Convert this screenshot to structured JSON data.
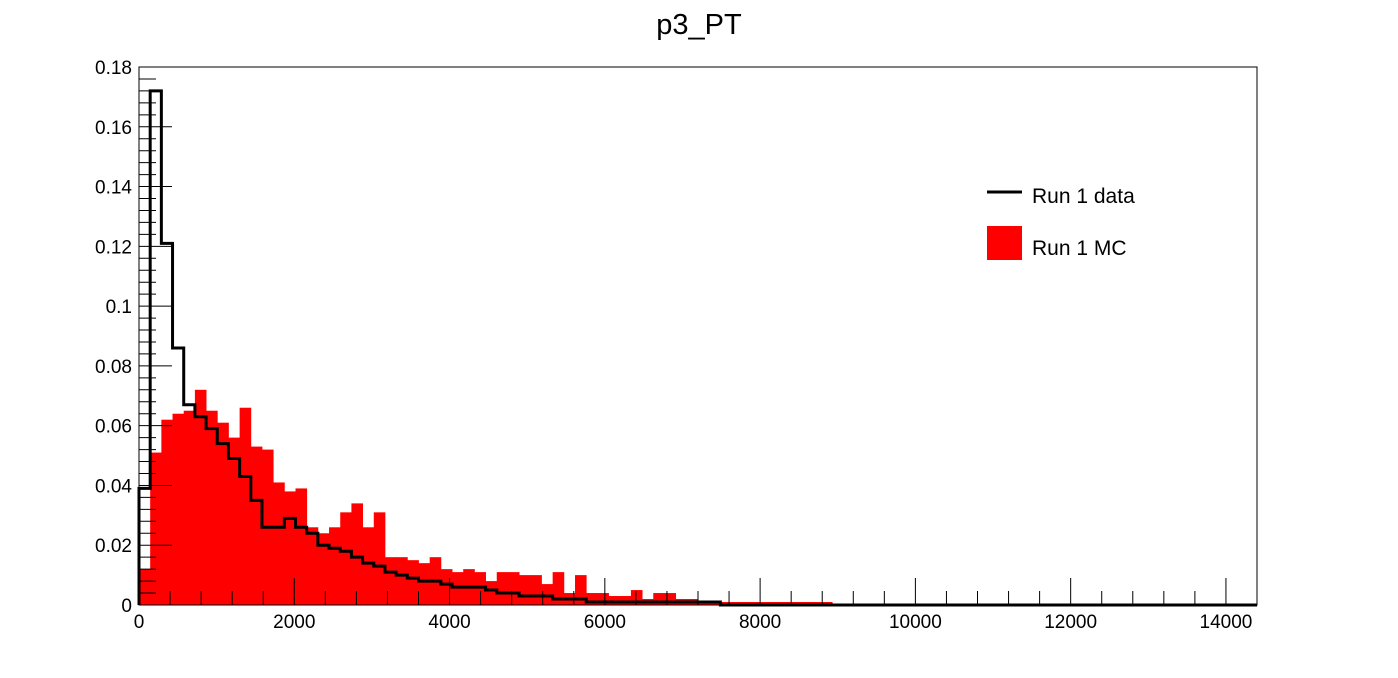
{
  "chart_data": {
    "type": "histogram",
    "title": "p3_PT",
    "xlabel": "",
    "ylabel": "",
    "xlim": [
      0,
      14400
    ],
    "ylim": [
      0,
      0.18
    ],
    "bin_width": 144,
    "x_ticks": [
      0,
      2000,
      4000,
      6000,
      8000,
      10000,
      12000,
      14000
    ],
    "x_tick_labels": [
      "0",
      "2000",
      "4000",
      "6000",
      "8000",
      "10000",
      "12000",
      "14000"
    ],
    "y_ticks": [
      0,
      0.02,
      0.04,
      0.06,
      0.08,
      0.1,
      0.12,
      0.14,
      0.16,
      0.18
    ],
    "y_tick_labels": [
      "0",
      "0.02",
      "0.04",
      "0.06",
      "0.08",
      "0.1",
      "0.12",
      "0.14",
      "0.16",
      "0.18"
    ],
    "grid": false,
    "legend_position": "top-right",
    "series": [
      {
        "name": "Run 1 MC",
        "style": "filled",
        "color": "#ff0000",
        "values": [
          0.012,
          0.051,
          0.062,
          0.064,
          0.065,
          0.072,
          0.065,
          0.061,
          0.056,
          0.066,
          0.053,
          0.052,
          0.041,
          0.038,
          0.039,
          0.026,
          0.024,
          0.026,
          0.031,
          0.034,
          0.026,
          0.031,
          0.016,
          0.016,
          0.015,
          0.014,
          0.016,
          0.012,
          0.011,
          0.012,
          0.011,
          0.008,
          0.011,
          0.011,
          0.01,
          0.01,
          0.007,
          0.011,
          0.004,
          0.01,
          0.004,
          0.004,
          0.003,
          0.003,
          0.005,
          0.002,
          0.004,
          0.004,
          0.002,
          0.002,
          0.001,
          0.001,
          0.001,
          0.001,
          0.001,
          0.001,
          0.001,
          0.001,
          0.001,
          0.001,
          0.001,
          0.001,
          0.0,
          0.0,
          0.0,
          0.0,
          0.0,
          0.0,
          0.0,
          0.0,
          0.0,
          0.0,
          0.0,
          0.0,
          0.0,
          0.0,
          0.0,
          0.0,
          0.0,
          0.0,
          0.0,
          0.0,
          0.0,
          0.0,
          0.0,
          0.0,
          0.0,
          0.0,
          0.0,
          0.0,
          0.0,
          0.0,
          0.0,
          0.0,
          0.0,
          0.0,
          0.0,
          0.0,
          0.0,
          0.0
        ]
      },
      {
        "name": "Run 1 data",
        "style": "step",
        "color": "#000000",
        "values": [
          0.039,
          0.172,
          0.121,
          0.086,
          0.067,
          0.063,
          0.059,
          0.054,
          0.049,
          0.043,
          0.035,
          0.026,
          0.026,
          0.029,
          0.026,
          0.024,
          0.02,
          0.019,
          0.018,
          0.016,
          0.014,
          0.013,
          0.011,
          0.01,
          0.009,
          0.008,
          0.008,
          0.007,
          0.006,
          0.006,
          0.006,
          0.005,
          0.004,
          0.004,
          0.003,
          0.003,
          0.003,
          0.002,
          0.002,
          0.002,
          0.001,
          0.001,
          0.001,
          0.001,
          0.001,
          0.001,
          0.001,
          0.001,
          0.001,
          0.001,
          0.001,
          0.001,
          0.0,
          0.0,
          0.0,
          0.0,
          0.0,
          0.0,
          0.0,
          0.0,
          0.0,
          0.0,
          0.0,
          0.0,
          0.0,
          0.0,
          0.0,
          0.0,
          0.0,
          0.0,
          0.0,
          0.0,
          0.0,
          0.0,
          0.0,
          0.0,
          0.0,
          0.0,
          0.0,
          0.0,
          0.0,
          0.0,
          0.0,
          0.0,
          0.0,
          0.0,
          0.0,
          0.0,
          0.0,
          0.0,
          0.0,
          0.0,
          0.0,
          0.0,
          0.0,
          0.0,
          0.0,
          0.0,
          0.0,
          0.0
        ]
      }
    ]
  }
}
